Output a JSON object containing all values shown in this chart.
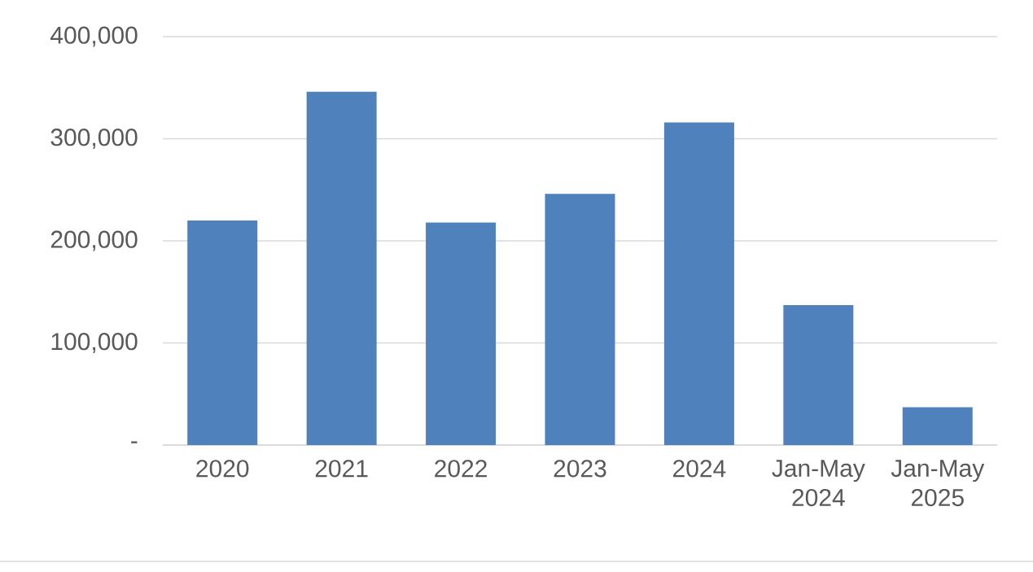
{
  "chart_data": {
    "type": "bar",
    "categories": [
      "2020",
      "2021",
      "2022",
      "2023",
      "2024",
      "Jan-May 2024",
      "Jan-May 2025"
    ],
    "values": [
      220000,
      346000,
      218000,
      246000,
      316000,
      137000,
      37000
    ],
    "color": "#4f81bd",
    "ylim": [
      0,
      400000
    ],
    "yticks": [
      {
        "value": 0,
        "label": "-"
      },
      {
        "value": 100000,
        "label": "100,000"
      },
      {
        "value": 200000,
        "label": "200,000"
      },
      {
        "value": 300000,
        "label": "300,000"
      },
      {
        "value": 400000,
        "label": "400,000"
      }
    ],
    "grid": "y"
  }
}
